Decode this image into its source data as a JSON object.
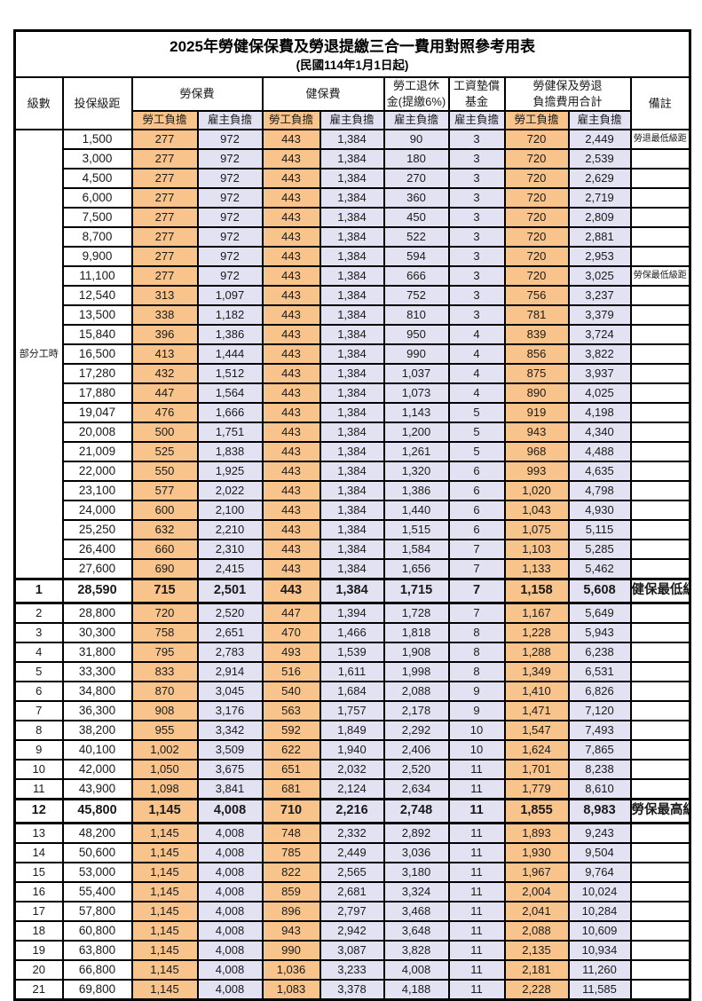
{
  "title": "2025年勞健保保費及勞退提繳三合一費用對照參考用表",
  "subtitle": "(民國114年1月1日起)",
  "columns": {
    "level": "級數",
    "bracket": "投保級距",
    "labor_insurance": "勞保費",
    "health_insurance": "健保費",
    "pension_l1": "勞工退休",
    "pension_l2": "金(提繳6%)",
    "wage_fund_l1": "工資墊償",
    "wage_fund_l2": "基金",
    "total_l1": "勞健保及勞退",
    "total_l2": "負擔費用合計",
    "remark": "備註",
    "employee_share": "勞工負擔",
    "employer_share": "雇主負擔"
  },
  "part_time_label": "部分工時",
  "colors": {
    "employee_cell_bg": "#F8C48C",
    "employer_cell_bg": "#E3E2F2",
    "highlight_value_red": "#E8473F",
    "remark_red": "#FA4D45",
    "border": "#000000"
  },
  "chart_data": {
    "type": "table",
    "value_column_order": [
      "勞保費勞工負擔",
      "勞保費雇主負擔",
      "健保費勞工負擔",
      "健保費雇主負擔",
      "勞工退休金雇主負擔",
      "工資墊償基金雇主負擔",
      "合計勞工負擔",
      "合計雇主負擔"
    ],
    "rows": [
      {
        "level": null,
        "bracket": "1,500",
        "values": [
          "277",
          "972",
          "443",
          "1,384",
          "90",
          "3",
          "720",
          "2,449"
        ],
        "remark": "勞退最低級距",
        "red": true,
        "bold": false
      },
      {
        "level": null,
        "bracket": "3,000",
        "values": [
          "277",
          "972",
          "443",
          "1,384",
          "180",
          "3",
          "720",
          "2,539"
        ],
        "remark": "",
        "red": false,
        "bold": false
      },
      {
        "level": null,
        "bracket": "4,500",
        "values": [
          "277",
          "972",
          "443",
          "1,384",
          "270",
          "3",
          "720",
          "2,629"
        ],
        "remark": "",
        "red": false,
        "bold": false
      },
      {
        "level": null,
        "bracket": "6,000",
        "values": [
          "277",
          "972",
          "443",
          "1,384",
          "360",
          "3",
          "720",
          "2,719"
        ],
        "remark": "",
        "red": false,
        "bold": false
      },
      {
        "level": null,
        "bracket": "7,500",
        "values": [
          "277",
          "972",
          "443",
          "1,384",
          "450",
          "3",
          "720",
          "2,809"
        ],
        "remark": "",
        "red": false,
        "bold": false
      },
      {
        "level": null,
        "bracket": "8,700",
        "values": [
          "277",
          "972",
          "443",
          "1,384",
          "522",
          "3",
          "720",
          "2,881"
        ],
        "remark": "",
        "red": false,
        "bold": false
      },
      {
        "level": null,
        "bracket": "9,900",
        "values": [
          "277",
          "972",
          "443",
          "1,384",
          "594",
          "3",
          "720",
          "2,953"
        ],
        "remark": "",
        "red": false,
        "bold": false
      },
      {
        "level": null,
        "bracket": "11,100",
        "values": [
          "277",
          "972",
          "443",
          "1,384",
          "666",
          "3",
          "720",
          "3,025"
        ],
        "remark": "勞保最低級距",
        "red": true,
        "bold": false
      },
      {
        "level": null,
        "bracket": "12,540",
        "values": [
          "313",
          "1,097",
          "443",
          "1,384",
          "752",
          "3",
          "756",
          "3,237"
        ],
        "remark": "",
        "red": false,
        "bold": false
      },
      {
        "level": null,
        "bracket": "13,500",
        "values": [
          "338",
          "1,182",
          "443",
          "1,384",
          "810",
          "3",
          "781",
          "3,379"
        ],
        "remark": "",
        "red": false,
        "bold": false
      },
      {
        "level": null,
        "bracket": "15,840",
        "values": [
          "396",
          "1,386",
          "443",
          "1,384",
          "950",
          "4",
          "839",
          "3,724"
        ],
        "remark": "",
        "red": false,
        "bold": false
      },
      {
        "level": null,
        "bracket": "16,500",
        "values": [
          "413",
          "1,444",
          "443",
          "1,384",
          "990",
          "4",
          "856",
          "3,822"
        ],
        "remark": "",
        "red": false,
        "bold": false
      },
      {
        "level": null,
        "bracket": "17,280",
        "values": [
          "432",
          "1,512",
          "443",
          "1,384",
          "1,037",
          "4",
          "875",
          "3,937"
        ],
        "remark": "",
        "red": false,
        "bold": false
      },
      {
        "level": null,
        "bracket": "17,880",
        "values": [
          "447",
          "1,564",
          "443",
          "1,384",
          "1,073",
          "4",
          "890",
          "4,025"
        ],
        "remark": "",
        "red": false,
        "bold": false
      },
      {
        "level": null,
        "bracket": "19,047",
        "values": [
          "476",
          "1,666",
          "443",
          "1,384",
          "1,143",
          "5",
          "919",
          "4,198"
        ],
        "remark": "",
        "red": false,
        "bold": false
      },
      {
        "level": null,
        "bracket": "20,008",
        "values": [
          "500",
          "1,751",
          "443",
          "1,384",
          "1,200",
          "5",
          "943",
          "4,340"
        ],
        "remark": "",
        "red": false,
        "bold": false
      },
      {
        "level": null,
        "bracket": "21,009",
        "values": [
          "525",
          "1,838",
          "443",
          "1,384",
          "1,261",
          "5",
          "968",
          "4,488"
        ],
        "remark": "",
        "red": false,
        "bold": false
      },
      {
        "level": null,
        "bracket": "22,000",
        "values": [
          "550",
          "1,925",
          "443",
          "1,384",
          "1,320",
          "6",
          "993",
          "4,635"
        ],
        "remark": "",
        "red": false,
        "bold": false
      },
      {
        "level": null,
        "bracket": "23,100",
        "values": [
          "577",
          "2,022",
          "443",
          "1,384",
          "1,386",
          "6",
          "1,020",
          "4,798"
        ],
        "remark": "",
        "red": false,
        "bold": false
      },
      {
        "level": null,
        "bracket": "24,000",
        "values": [
          "600",
          "2,100",
          "443",
          "1,384",
          "1,440",
          "6",
          "1,043",
          "4,930"
        ],
        "remark": "",
        "red": false,
        "bold": false
      },
      {
        "level": null,
        "bracket": "25,250",
        "values": [
          "632",
          "2,210",
          "443",
          "1,384",
          "1,515",
          "6",
          "1,075",
          "5,115"
        ],
        "remark": "",
        "red": false,
        "bold": false
      },
      {
        "level": null,
        "bracket": "26,400",
        "values": [
          "660",
          "2,310",
          "443",
          "1,384",
          "1,584",
          "7",
          "1,103",
          "5,285"
        ],
        "remark": "",
        "red": false,
        "bold": false
      },
      {
        "level": null,
        "bracket": "27,600",
        "values": [
          "690",
          "2,415",
          "443",
          "1,384",
          "1,656",
          "7",
          "1,133",
          "5,462"
        ],
        "remark": "",
        "red": false,
        "bold": false
      },
      {
        "level": "1",
        "bracket": "28,590",
        "values": [
          "715",
          "2,501",
          "443",
          "1,384",
          "1,715",
          "7",
          "1,158",
          "5,608"
        ],
        "remark": "健保最低級距",
        "red": true,
        "bold": true
      },
      {
        "level": "2",
        "bracket": "28,800",
        "values": [
          "720",
          "2,520",
          "447",
          "1,394",
          "1,728",
          "7",
          "1,167",
          "5,649"
        ],
        "remark": "",
        "red": false,
        "bold": false
      },
      {
        "level": "3",
        "bracket": "30,300",
        "values": [
          "758",
          "2,651",
          "470",
          "1,466",
          "1,818",
          "8",
          "1,228",
          "5,943"
        ],
        "remark": "",
        "red": false,
        "bold": false
      },
      {
        "level": "4",
        "bracket": "31,800",
        "values": [
          "795",
          "2,783",
          "493",
          "1,539",
          "1,908",
          "8",
          "1,288",
          "6,238"
        ],
        "remark": "",
        "red": false,
        "bold": false
      },
      {
        "level": "5",
        "bracket": "33,300",
        "values": [
          "833",
          "2,914",
          "516",
          "1,611",
          "1,998",
          "8",
          "1,349",
          "6,531"
        ],
        "remark": "",
        "red": false,
        "bold": false
      },
      {
        "level": "6",
        "bracket": "34,800",
        "values": [
          "870",
          "3,045",
          "540",
          "1,684",
          "2,088",
          "9",
          "1,410",
          "6,826"
        ],
        "remark": "",
        "red": false,
        "bold": false
      },
      {
        "level": "7",
        "bracket": "36,300",
        "values": [
          "908",
          "3,176",
          "563",
          "1,757",
          "2,178",
          "9",
          "1,471",
          "7,120"
        ],
        "remark": "",
        "red": false,
        "bold": false
      },
      {
        "level": "8",
        "bracket": "38,200",
        "values": [
          "955",
          "3,342",
          "592",
          "1,849",
          "2,292",
          "10",
          "1,547",
          "7,493"
        ],
        "remark": "",
        "red": false,
        "bold": false
      },
      {
        "level": "9",
        "bracket": "40,100",
        "values": [
          "1,002",
          "3,509",
          "622",
          "1,940",
          "2,406",
          "10",
          "1,624",
          "7,865"
        ],
        "remark": "",
        "red": false,
        "bold": false
      },
      {
        "level": "10",
        "bracket": "42,000",
        "values": [
          "1,050",
          "3,675",
          "651",
          "2,032",
          "2,520",
          "11",
          "1,701",
          "8,238"
        ],
        "remark": "",
        "red": false,
        "bold": false
      },
      {
        "level": "11",
        "bracket": "43,900",
        "values": [
          "1,098",
          "3,841",
          "681",
          "2,124",
          "2,634",
          "11",
          "1,779",
          "8,610"
        ],
        "remark": "",
        "red": false,
        "bold": false
      },
      {
        "level": "12",
        "bracket": "45,800",
        "values": [
          "1,145",
          "4,008",
          "710",
          "2,216",
          "2,748",
          "11",
          "1,855",
          "8,983"
        ],
        "remark": "勞保最高級距",
        "red": true,
        "bold": true
      },
      {
        "level": "13",
        "bracket": "48,200",
        "values": [
          "1,145",
          "4,008",
          "748",
          "2,332",
          "2,892",
          "11",
          "1,893",
          "9,243"
        ],
        "remark": "",
        "red": false,
        "bold": false
      },
      {
        "level": "14",
        "bracket": "50,600",
        "values": [
          "1,145",
          "4,008",
          "785",
          "2,449",
          "3,036",
          "11",
          "1,930",
          "9,504"
        ],
        "remark": "",
        "red": false,
        "bold": false
      },
      {
        "level": "15",
        "bracket": "53,000",
        "values": [
          "1,145",
          "4,008",
          "822",
          "2,565",
          "3,180",
          "11",
          "1,967",
          "9,764"
        ],
        "remark": "",
        "red": false,
        "bold": false
      },
      {
        "level": "16",
        "bracket": "55,400",
        "values": [
          "1,145",
          "4,008",
          "859",
          "2,681",
          "3,324",
          "11",
          "2,004",
          "10,024"
        ],
        "remark": "",
        "red": false,
        "bold": false
      },
      {
        "level": "17",
        "bracket": "57,800",
        "values": [
          "1,145",
          "4,008",
          "896",
          "2,797",
          "3,468",
          "11",
          "2,041",
          "10,284"
        ],
        "remark": "",
        "red": false,
        "bold": false
      },
      {
        "level": "18",
        "bracket": "60,800",
        "values": [
          "1,145",
          "4,008",
          "943",
          "2,942",
          "3,648",
          "11",
          "2,088",
          "10,609"
        ],
        "remark": "",
        "red": false,
        "bold": false
      },
      {
        "level": "19",
        "bracket": "63,800",
        "values": [
          "1,145",
          "4,008",
          "990",
          "3,087",
          "3,828",
          "11",
          "2,135",
          "10,934"
        ],
        "remark": "",
        "red": false,
        "bold": false
      },
      {
        "level": "20",
        "bracket": "66,800",
        "values": [
          "1,145",
          "4,008",
          "1,036",
          "3,233",
          "4,008",
          "11",
          "2,181",
          "11,260"
        ],
        "remark": "",
        "red": false,
        "bold": false
      },
      {
        "level": "21",
        "bracket": "69,800",
        "values": [
          "1,145",
          "4,008",
          "1,083",
          "3,378",
          "4,188",
          "11",
          "2,228",
          "11,585"
        ],
        "remark": "",
        "red": false,
        "bold": false
      }
    ]
  }
}
